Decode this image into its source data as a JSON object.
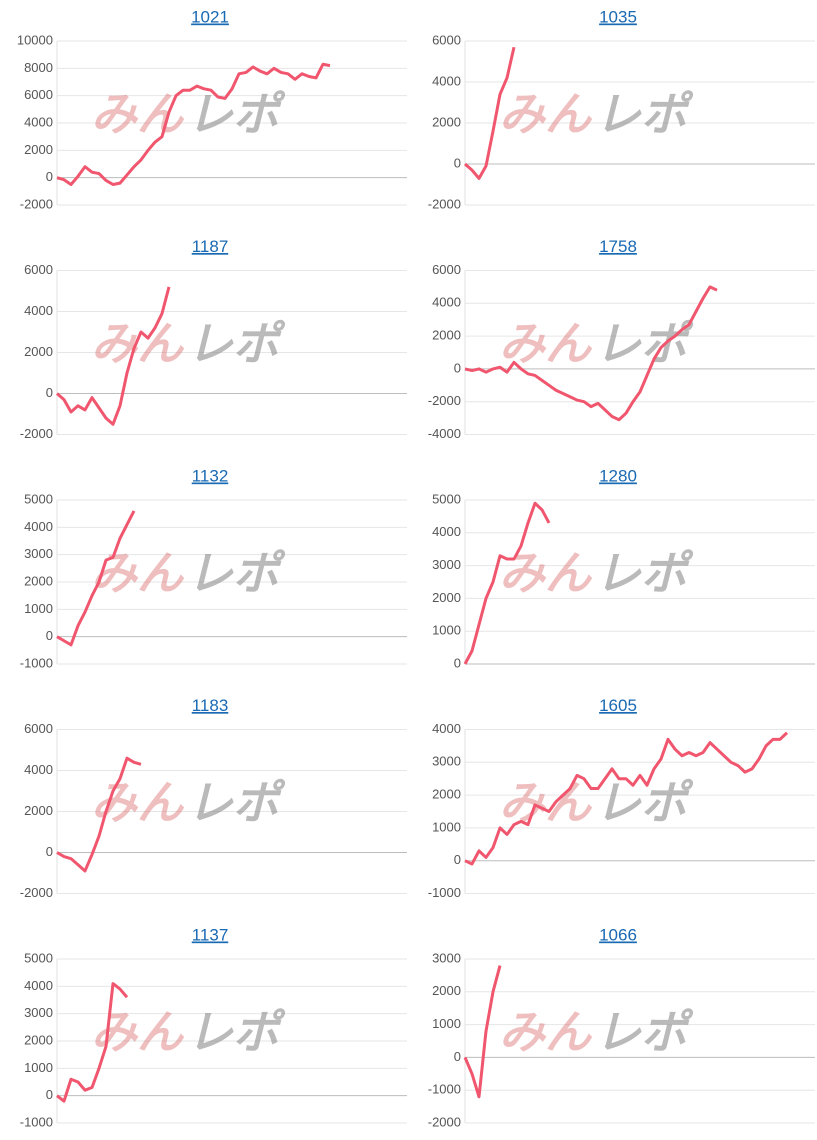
{
  "watermark": {
    "left": "みん",
    "right": "レポ"
  },
  "chart_data": [
    {
      "type": "line",
      "title": "1021",
      "color": "#f0566e",
      "ylim": [
        -2000,
        10000
      ],
      "yticks": [
        -2000,
        0,
        2000,
        4000,
        6000,
        8000,
        10000
      ],
      "grid": true,
      "values": [
        0,
        -150,
        -500,
        100,
        800,
        400,
        300,
        -200,
        -500,
        -400,
        200,
        800,
        1300,
        2000,
        2600,
        3000,
        4800,
        6000,
        6400,
        6400,
        6700,
        6500,
        6400,
        5900,
        5800,
        6500,
        7600,
        7700,
        8100,
        7800,
        7600,
        8000,
        7700,
        7600,
        7200,
        7600,
        7400,
        7300,
        8300,
        8200
      ]
    },
    {
      "type": "line",
      "title": "1035",
      "color": "#f0566e",
      "ylim": [
        -2000,
        6000
      ],
      "yticks": [
        -2000,
        0,
        2000,
        4000,
        6000
      ],
      "grid": true,
      "values": [
        0,
        -300,
        -700,
        -100,
        1600,
        3400,
        4200,
        5700
      ]
    },
    {
      "type": "line",
      "title": "1187",
      "color": "#f0566e",
      "ylim": [
        -2000,
        6000
      ],
      "yticks": [
        -2000,
        0,
        2000,
        4000,
        6000
      ],
      "grid": true,
      "values": [
        0,
        -300,
        -900,
        -600,
        -800,
        -200,
        -700,
        -1200,
        -1500,
        -600,
        1000,
        2200,
        3000,
        2700,
        3200,
        3900,
        5200
      ]
    },
    {
      "type": "line",
      "title": "1758",
      "color": "#f0566e",
      "ylim": [
        -4000,
        6000
      ],
      "yticks": [
        -4000,
        -2000,
        0,
        2000,
        4000,
        6000
      ],
      "grid": true,
      "values": [
        0,
        -100,
        0,
        -200,
        0,
        100,
        -200,
        400,
        0,
        -300,
        -400,
        -700,
        -1000,
        -1300,
        -1500,
        -1700,
        -1900,
        -2000,
        -2300,
        -2100,
        -2500,
        -2900,
        -3100,
        -2700,
        -2000,
        -1400,
        -400,
        600,
        1300,
        1700,
        2000,
        2400,
        2700,
        3500,
        4300,
        5000,
        4800
      ]
    },
    {
      "type": "line",
      "title": "1132",
      "color": "#f0566e",
      "ylim": [
        -1000,
        5000
      ],
      "yticks": [
        -1000,
        0,
        1000,
        2000,
        3000,
        4000,
        5000
      ],
      "grid": true,
      "values": [
        0,
        -150,
        -300,
        400,
        900,
        1500,
        2000,
        2800,
        2900,
        3600,
        4100,
        4600
      ]
    },
    {
      "type": "line",
      "title": "1280",
      "color": "#f0566e",
      "ylim": [
        0,
        5000
      ],
      "yticks": [
        0,
        1000,
        2000,
        3000,
        4000,
        5000
      ],
      "grid": true,
      "values": [
        0,
        400,
        1200,
        2000,
        2500,
        3300,
        3200,
        3200,
        3600,
        4300,
        4900,
        4700,
        4300
      ]
    },
    {
      "type": "line",
      "title": "1183",
      "color": "#f0566e",
      "ylim": [
        -2000,
        6000
      ],
      "yticks": [
        -2000,
        0,
        2000,
        4000,
        6000
      ],
      "grid": true,
      "values": [
        0,
        -200,
        -300,
        -600,
        -900,
        -100,
        800,
        2000,
        3000,
        3600,
        4600,
        4400,
        4300
      ]
    },
    {
      "type": "line",
      "title": "1605",
      "color": "#f0566e",
      "ylim": [
        -1000,
        4000
      ],
      "yticks": [
        -1000,
        0,
        1000,
        2000,
        3000,
        4000
      ],
      "grid": true,
      "values": [
        0,
        -100,
        300,
        100,
        400,
        1000,
        800,
        1100,
        1200,
        1100,
        1700,
        1600,
        1500,
        1800,
        2000,
        2200,
        2600,
        2500,
        2200,
        2200,
        2500,
        2800,
        2500,
        2500,
        2300,
        2600,
        2300,
        2800,
        3100,
        3700,
        3400,
        3200,
        3300,
        3200,
        3300,
        3600,
        3400,
        3200,
        3000,
        2900,
        2700,
        2800,
        3100,
        3500,
        3700,
        3700,
        3900
      ]
    },
    {
      "type": "line",
      "title": "1137",
      "color": "#f0566e",
      "ylim": [
        -1000,
        5000
      ],
      "yticks": [
        -1000,
        0,
        1000,
        2000,
        3000,
        4000,
        5000
      ],
      "grid": true,
      "values": [
        0,
        -200,
        600,
        500,
        200,
        300,
        1000,
        1800,
        4100,
        3900,
        3600
      ]
    },
    {
      "type": "line",
      "title": "1066",
      "color": "#f0566e",
      "ylim": [
        -2000,
        3000
      ],
      "yticks": [
        -2000,
        -1000,
        0,
        1000,
        2000,
        3000
      ],
      "grid": true,
      "values": [
        0,
        -500,
        -1200,
        800,
        2000,
        2800
      ]
    }
  ]
}
